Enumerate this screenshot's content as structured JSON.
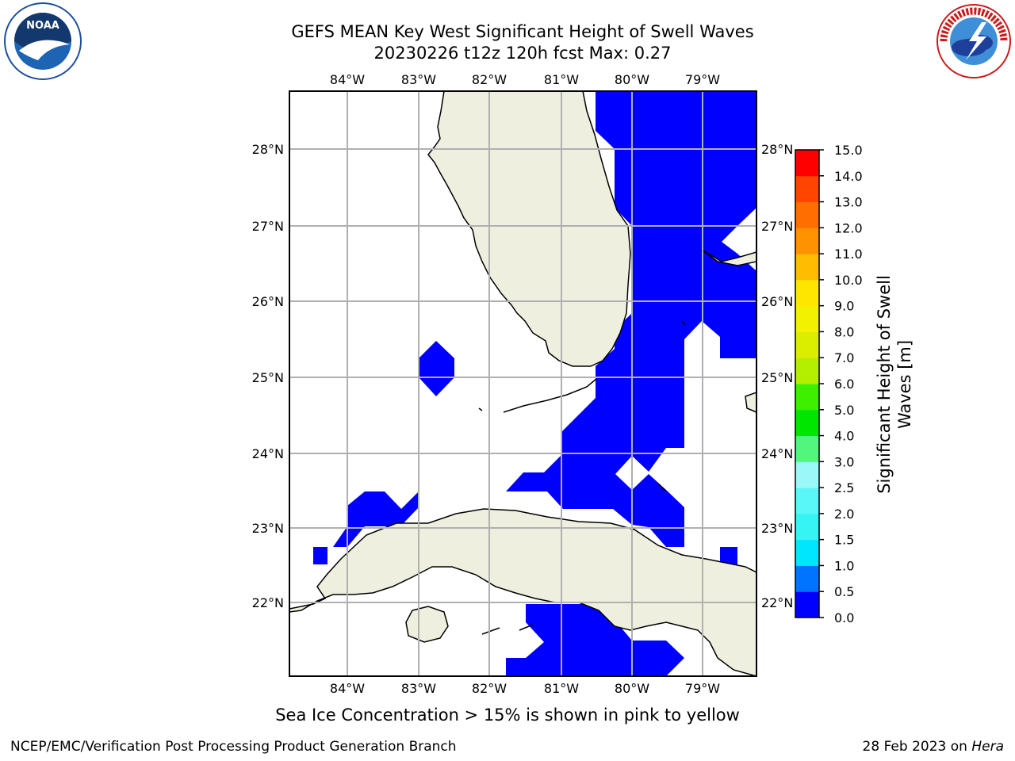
{
  "title_line1": "GEFS MEAN Key West Significant Height of Swell Waves",
  "title_line2": "20230226 t12z 120h fcst   Max: 0.27",
  "lon_labels": [
    "84°W",
    "83°W",
    "82°W",
    "81°W",
    "80°W",
    "79°W"
  ],
  "lat_labels": [
    "28°N",
    "27°N",
    "26°N",
    "25°N",
    "24°N",
    "23°N",
    "22°N"
  ],
  "colorbar": {
    "label_line1": "Significant Height of Swell",
    "label_line2": "Waves [m]",
    "ticks": [
      "0.0",
      "0.5",
      "1.0",
      "1.5",
      "2.0",
      "2.5",
      "3.0",
      "4.0",
      "5.0",
      "6.0",
      "7.0",
      "8.0",
      "9.0",
      "10.0",
      "11.0",
      "12.0",
      "13.0",
      "14.0",
      "15.0"
    ],
    "colors": [
      "#0000ff",
      "#0073ff",
      "#00e6ff",
      "#36f4f4",
      "#59f7f7",
      "#9bf8f8",
      "#52f57e",
      "#00e600",
      "#3cf000",
      "#b4ee00",
      "#dcee00",
      "#f2f200",
      "#ffe600",
      "#ffbc00",
      "#ff9200",
      "#ff6e00",
      "#ff4500",
      "#ff0000"
    ]
  },
  "note": "Sea Ice Concentration > 15% is shown in pink to yellow",
  "footer_left": "NCEP/EMC/Verification Post Processing Product Generation Branch",
  "footer_right_prefix": "28 Feb 2023 on ",
  "footer_right_host": "Hera",
  "logos": [
    "noaa-logo",
    "nws-logo"
  ],
  "colors": {
    "land": "#efefe0",
    "swell": "#0000ff",
    "grid": "#b0b0b0"
  }
}
